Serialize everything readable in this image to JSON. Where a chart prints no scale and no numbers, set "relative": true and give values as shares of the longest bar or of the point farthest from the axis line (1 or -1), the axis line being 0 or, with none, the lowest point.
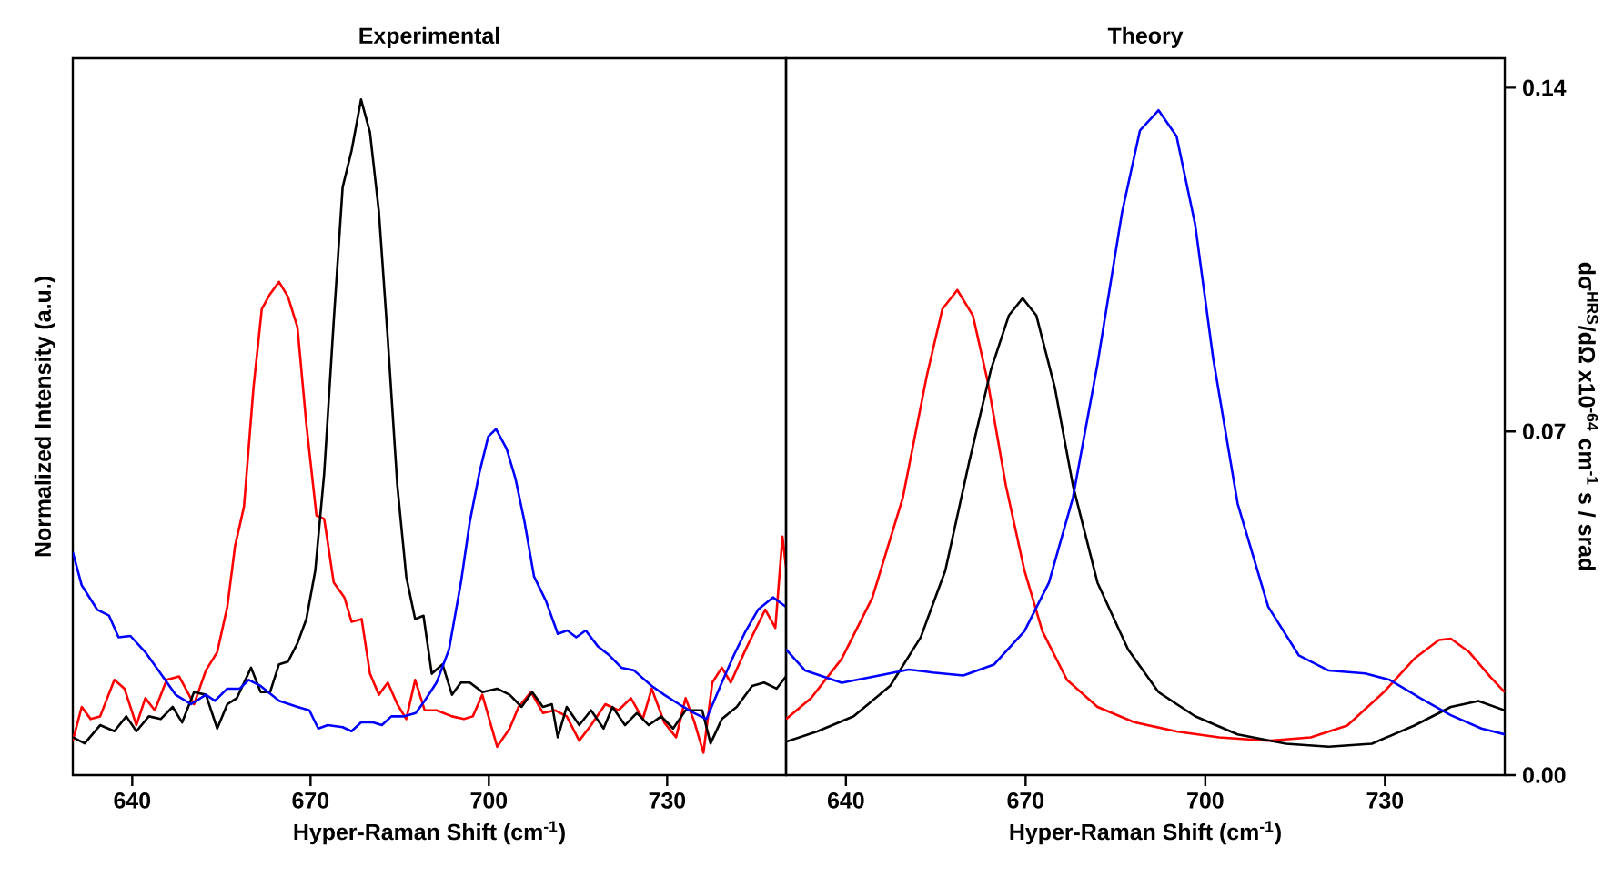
{
  "chart_data": [
    {
      "type": "line",
      "title": "Experimental",
      "xlabel": "Hyper-Raman Shift (cm$^{-1}$)",
      "ylabel": "Normalized Intensity (a.u.)",
      "relative": true,
      "tick_labels": "x",
      "xlim": [
        630,
        750
      ],
      "xticks": [
        640,
        670,
        700,
        730
      ],
      "grid": false,
      "series": [
        {
          "color": "#ff0000",
          "x": [
            630,
            631.5,
            633,
            634.6,
            637,
            638.7,
            640.7,
            642.2,
            643.8,
            645.8,
            647.9,
            650.4,
            652.4,
            654.3,
            656,
            657.3,
            658.8,
            660.4,
            661.8,
            663.2,
            664.7,
            666.2,
            667.8,
            669.3,
            671,
            672.3,
            673.9,
            675.7,
            676.9,
            678.6,
            680,
            681.5,
            683,
            684.6,
            686.1,
            687.6,
            689.2,
            691.2,
            693.8,
            695.8,
            697.3,
            698.9,
            701.4,
            703.5,
            705,
            707.1,
            709.1,
            711.1,
            713.1,
            715.2,
            717.2,
            719.6,
            721.8,
            723.9,
            725.9,
            727.4,
            729.5,
            731.5,
            733.1,
            734.6,
            736.1,
            737.6,
            739.2,
            740.7,
            743.2,
            746.5,
            748.2,
            749.4,
            750
          ],
          "values": [
            0.051,
            0.101,
            0.083,
            0.087,
            0.141,
            0.128,
            0.074,
            0.114,
            0.096,
            0.141,
            0.146,
            0.105,
            0.155,
            0.182,
            0.249,
            0.339,
            0.397,
            0.573,
            0.69,
            0.712,
            0.73,
            0.708,
            0.663,
            0.519,
            0.384,
            0.379,
            0.285,
            0.263,
            0.227,
            0.231,
            0.15,
            0.119,
            0.137,
            0.105,
            0.083,
            0.141,
            0.096,
            0.096,
            0.087,
            0.083,
            0.087,
            0.119,
            0.042,
            0.069,
            0.101,
            0.123,
            0.092,
            0.096,
            0.087,
            0.051,
            0.074,
            0.105,
            0.096,
            0.114,
            0.083,
            0.128,
            0.078,
            0.056,
            0.114,
            0.078,
            0.033,
            0.137,
            0.159,
            0.137,
            0.186,
            0.245,
            0.218,
            0.353,
            0.308
          ]
        },
        {
          "color": "#000000",
          "x": [
            630,
            632,
            634.6,
            637,
            639,
            640.7,
            642.8,
            644.8,
            646.8,
            648.4,
            650.4,
            652.4,
            654.3,
            656,
            657.6,
            660,
            661.6,
            663.2,
            664.7,
            666.2,
            667.8,
            669.3,
            670.8,
            672.3,
            673.9,
            675.4,
            676.9,
            678.5,
            680,
            681.5,
            683,
            684.6,
            686.1,
            687.6,
            689,
            690.4,
            692.2,
            693.8,
            695.3,
            696.8,
            698.9,
            701.4,
            703.5,
            705.5,
            707.3,
            709.1,
            710.6,
            711.6,
            713.1,
            715.2,
            717.2,
            719.3,
            720.8,
            722.9,
            724.9,
            726.9,
            729,
            731,
            733.1,
            735.9,
            737.3,
            739.2,
            741.7,
            744.3,
            746.3,
            748.4,
            750
          ],
          "values": [
            0.056,
            0.047,
            0.074,
            0.065,
            0.087,
            0.065,
            0.087,
            0.083,
            0.101,
            0.078,
            0.123,
            0.119,
            0.069,
            0.105,
            0.114,
            0.159,
            0.123,
            0.123,
            0.164,
            0.168,
            0.195,
            0.231,
            0.303,
            0.447,
            0.672,
            0.87,
            0.924,
            1.0,
            0.951,
            0.834,
            0.645,
            0.429,
            0.294,
            0.231,
            0.236,
            0.15,
            0.164,
            0.119,
            0.137,
            0.137,
            0.123,
            0.128,
            0.119,
            0.101,
            0.123,
            0.101,
            0.105,
            0.056,
            0.101,
            0.074,
            0.096,
            0.069,
            0.101,
            0.074,
            0.092,
            0.074,
            0.087,
            0.069,
            0.096,
            0.096,
            0.047,
            0.083,
            0.101,
            0.132,
            0.137,
            0.128,
            0.146
          ]
        },
        {
          "color": "#0000ff",
          "x": [
            630,
            631.5,
            634.1,
            636.1,
            637.7,
            639.7,
            642.2,
            644.8,
            647.3,
            649.9,
            652.4,
            653.9,
            656,
            658.1,
            659.6,
            661.6,
            664.7,
            667.8,
            669.8,
            671.3,
            672.9,
            675.4,
            676.9,
            678.5,
            680.5,
            682,
            683.6,
            685.6,
            687.7,
            689.2,
            691.2,
            693.3,
            695.3,
            696.8,
            698.4,
            699.9,
            701.2,
            703,
            704.5,
            706,
            707.6,
            709.6,
            711.6,
            713.2,
            714.7,
            716.3,
            718.3,
            720.3,
            722.3,
            724.4,
            727.4,
            729.5,
            732,
            734.5,
            736.6,
            739.2,
            741.2,
            743.2,
            745.3,
            747.8,
            750
          ],
          "values": [
            0.33,
            0.281,
            0.245,
            0.236,
            0.204,
            0.206,
            0.182,
            0.15,
            0.119,
            0.105,
            0.119,
            0.11,
            0.128,
            0.128,
            0.141,
            0.132,
            0.11,
            0.101,
            0.096,
            0.069,
            0.074,
            0.071,
            0.065,
            0.078,
            0.078,
            0.074,
            0.087,
            0.087,
            0.092,
            0.11,
            0.137,
            0.186,
            0.285,
            0.375,
            0.447,
            0.501,
            0.512,
            0.483,
            0.438,
            0.375,
            0.294,
            0.258,
            0.209,
            0.214,
            0.204,
            0.214,
            0.191,
            0.177,
            0.159,
            0.155,
            0.132,
            0.119,
            0.105,
            0.092,
            0.083,
            0.137,
            0.177,
            0.213,
            0.245,
            0.263,
            0.249
          ]
        }
      ]
    },
    {
      "type": "line",
      "title": "Theory",
      "xlabel": "Hyper-Raman Shift (cm$^{-1}$)",
      "ylabel": "dσ$^{HRS}$/dΩ x10$^{-64}$ cm$^{-1}$ s / srad",
      "xlim": [
        630,
        750
      ],
      "xticks": [
        640,
        670,
        700,
        730
      ],
      "ylim": [
        0,
        0.146
      ],
      "yticks": [
        {
          "value": 0,
          "label": "0.00"
        },
        0.07,
        0.14
      ],
      "grid": false,
      "series": [
        {
          "color": "#ff0000",
          "x": [
            630,
            634.2,
            639.3,
            644.4,
            649.5,
            653.5,
            656.1,
            658.6,
            661.2,
            663.7,
            666.7,
            669.8,
            672.8,
            676.9,
            682,
            688.1,
            695.2,
            702.3,
            710.5,
            717.6,
            723.7,
            729.8,
            734.9,
            739,
            741,
            744.1,
            747.6,
            750
          ],
          "values": [
            0.0114,
            0.0157,
            0.0237,
            0.0361,
            0.0565,
            0.0813,
            0.0949,
            0.0988,
            0.0936,
            0.08,
            0.059,
            0.0417,
            0.0293,
            0.0194,
            0.0139,
            0.0108,
            0.0089,
            0.0077,
            0.007,
            0.0077,
            0.0101,
            0.0169,
            0.0237,
            0.0275,
            0.0278,
            0.025,
            0.02,
            0.0169
          ]
        },
        {
          "color": "#000000",
          "x": [
            630,
            635.2,
            641.3,
            647.4,
            652.5,
            656.6,
            660.6,
            664.2,
            667.2,
            669.5,
            671.8,
            674.9,
            677.9,
            682,
            687.1,
            692.2,
            698.3,
            705.4,
            713.5,
            720.6,
            727.8,
            734.9,
            741,
            745.6,
            750
          ],
          "values": [
            0.0068,
            0.0089,
            0.012,
            0.0182,
            0.0281,
            0.0417,
            0.0639,
            0.0825,
            0.0936,
            0.0971,
            0.0936,
            0.0788,
            0.059,
            0.0392,
            0.0256,
            0.0169,
            0.012,
            0.0083,
            0.0064,
            0.0058,
            0.0064,
            0.0101,
            0.0139,
            0.0151,
            0.0132
          ]
        },
        {
          "color": "#0000ff",
          "x": [
            630,
            633.2,
            639.3,
            644.4,
            650.5,
            654.5,
            659.6,
            664.7,
            669.8,
            673.9,
            677.9,
            682,
            686.1,
            689.1,
            692.2,
            695.2,
            698.3,
            701.3,
            705.4,
            710.5,
            715.6,
            720.6,
            726.7,
            730.8,
            735.9,
            741,
            746.1,
            750
          ],
          "values": [
            0.0256,
            0.0213,
            0.0188,
            0.02,
            0.0215,
            0.0209,
            0.0203,
            0.0225,
            0.0293,
            0.0392,
            0.0565,
            0.0837,
            0.1146,
            0.1313,
            0.1354,
            0.1301,
            0.1122,
            0.085,
            0.0553,
            0.0343,
            0.0244,
            0.0213,
            0.0207,
            0.0194,
            0.0157,
            0.0122,
            0.0095,
            0.0083
          ]
        }
      ]
    }
  ]
}
